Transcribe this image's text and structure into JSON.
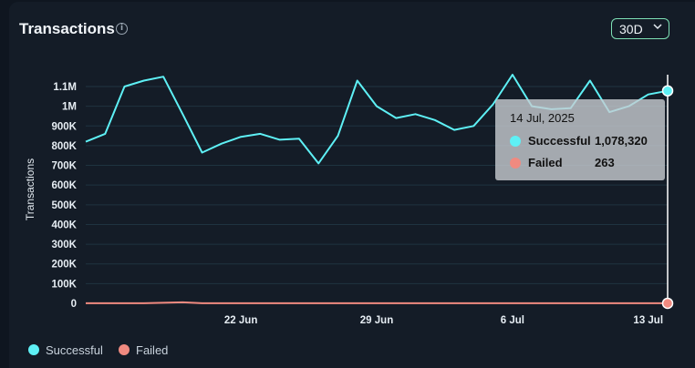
{
  "header": {
    "title": "Transactions",
    "info_icon": "info-icon",
    "range": {
      "selected": "30D",
      "icon": "chevron-down-icon"
    }
  },
  "legend": [
    {
      "name": "Successful",
      "color": "#5ef0f5"
    },
    {
      "name": "Failed",
      "color": "#f08a80"
    }
  ],
  "tooltip": {
    "date": "14 Jul, 2025",
    "rows": [
      {
        "name": "Successful",
        "value": "1,078,320",
        "color": "#5ef0f5"
      },
      {
        "name": "Failed",
        "value": "263",
        "color": "#f08a80"
      }
    ]
  },
  "chart_data": {
    "type": "line",
    "ylabel": "Transactions",
    "ylim": [
      0,
      1100000
    ],
    "y_ticks": [
      {
        "value": 0,
        "label": "0"
      },
      {
        "value": 100000,
        "label": "100K"
      },
      {
        "value": 200000,
        "label": "200K"
      },
      {
        "value": 300000,
        "label": "300K"
      },
      {
        "value": 400000,
        "label": "400K"
      },
      {
        "value": 500000,
        "label": "500K"
      },
      {
        "value": 600000,
        "label": "600K"
      },
      {
        "value": 700000,
        "label": "700K"
      },
      {
        "value": 800000,
        "label": "800K"
      },
      {
        "value": 900000,
        "label": "900K"
      },
      {
        "value": 1000000,
        "label": "1M"
      },
      {
        "value": 1100000,
        "label": "1.1M"
      }
    ],
    "x_ticks": [
      "22 Jun",
      "29 Jun",
      "6 Jul",
      "13 Jul"
    ],
    "x": [
      "14 Jun",
      "15 Jun",
      "16 Jun",
      "17 Jun",
      "18 Jun",
      "19 Jun",
      "20 Jun",
      "21 Jun",
      "22 Jun",
      "23 Jun",
      "24 Jun",
      "25 Jun",
      "26 Jun",
      "27 Jun",
      "28 Jun",
      "29 Jun",
      "30 Jun",
      "1 Jul",
      "2 Jul",
      "3 Jul",
      "4 Jul",
      "5 Jul",
      "6 Jul",
      "7 Jul",
      "8 Jul",
      "9 Jul",
      "10 Jul",
      "11 Jul",
      "12 Jul",
      "13 Jul",
      "14 Jul"
    ],
    "grid": true,
    "series": [
      {
        "name": "Successful",
        "color": "#5ef0f5",
        "values": [
          820000,
          860000,
          1100000,
          1130000,
          1150000,
          960000,
          765000,
          810000,
          845000,
          860000,
          830000,
          835000,
          710000,
          850000,
          1130000,
          1000000,
          940000,
          960000,
          930000,
          880000,
          900000,
          1010000,
          1160000,
          1000000,
          985000,
          990000,
          1130000,
          970000,
          1000000,
          1060000,
          1078320
        ]
      },
      {
        "name": "Failed",
        "color": "#f08a80",
        "values": [
          300,
          300,
          300,
          400,
          3000,
          5000,
          300,
          300,
          300,
          300,
          300,
          300,
          300,
          300,
          300,
          300,
          300,
          300,
          300,
          300,
          300,
          300,
          300,
          300,
          300,
          300,
          300,
          300,
          300,
          300,
          263
        ]
      }
    ],
    "highlight_index": 30
  }
}
